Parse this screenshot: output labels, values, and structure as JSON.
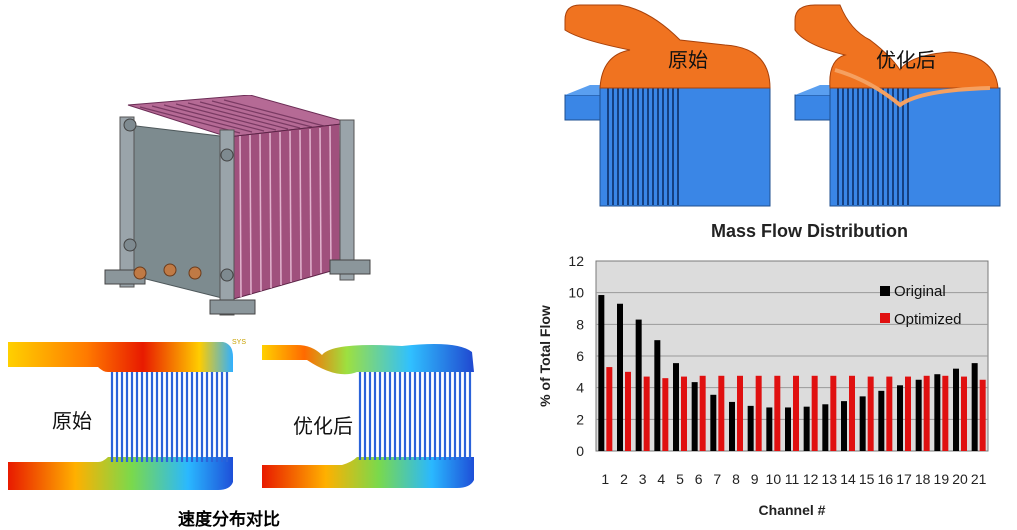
{
  "labels": {
    "original": "原始",
    "optimized": "优化后",
    "caption": "速度分布对比",
    "brand_fragment": "SYS"
  },
  "colors": {
    "manifold_orange": "#f07320",
    "channel_blue": "#3a86e6",
    "battery_purple": "#a0507d",
    "battery_gray": "#7d8b8f",
    "bar_original": "#000000",
    "bar_optimized": "#e01010"
  },
  "chart_data": {
    "type": "bar",
    "title": "Mass Flow Distribution",
    "xlabel": "Channel #",
    "ylabel": "% of Total Flow",
    "ylim": [
      0,
      12
    ],
    "yticks": [
      0,
      2,
      4,
      6,
      8,
      10,
      12
    ],
    "grid": true,
    "legend_position": "top-right",
    "categories": [
      "1",
      "2",
      "3",
      "4",
      "5",
      "6",
      "7",
      "8",
      "9",
      "10",
      "11",
      "12",
      "13",
      "14",
      "15",
      "16",
      "17",
      "18",
      "19",
      "20",
      "21"
    ],
    "series": [
      {
        "name": "Original",
        "color": "#000000",
        "values": [
          9.85,
          9.3,
          8.3,
          7.0,
          5.55,
          4.35,
          3.55,
          3.1,
          2.85,
          2.75,
          2.75,
          2.8,
          2.95,
          3.15,
          3.45,
          3.8,
          4.15,
          4.5,
          4.85,
          5.2,
          5.55
        ]
      },
      {
        "name": "Optimized",
        "color": "#e01010",
        "values": [
          5.3,
          5.0,
          4.7,
          4.6,
          4.7,
          4.75,
          4.75,
          4.75,
          4.75,
          4.75,
          4.75,
          4.75,
          4.75,
          4.75,
          4.7,
          4.7,
          4.7,
          4.75,
          4.75,
          4.7,
          4.5
        ]
      }
    ]
  }
}
